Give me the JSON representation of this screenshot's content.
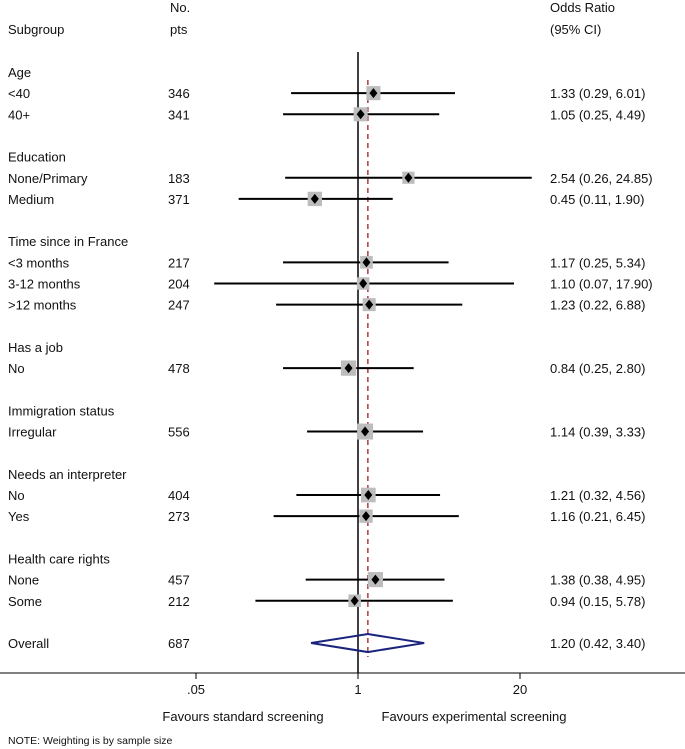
{
  "header": {
    "subgroup": "Subgroup",
    "npts_line1": "No.",
    "npts_line2": "pts",
    "or_line1": "Odds Ratio",
    "or_line2": "(95% CI)"
  },
  "footer": {
    "favours_left": "Favours standard screening",
    "favours_right": "Favours experimental screening",
    "note": "NOTE: Weighting is by sample size"
  },
  "chart_data": {
    "type": "forest",
    "x_scale": "log",
    "xlim": [
      0.019,
      70
    ],
    "x_ticks": [
      {
        "value": 0.05,
        "label": ".05"
      },
      {
        "value": 1,
        "label": "1"
      },
      {
        "value": 20,
        "label": "20"
      }
    ],
    "null_line": 1,
    "overall_or": 1.2,
    "colors": {
      "overall_diamond": "#1a237e",
      "overall_line": "#b03a3a",
      "weight_box": "#bdbdbd"
    },
    "rows": [
      {
        "kind": "group",
        "label": "Age"
      },
      {
        "kind": "study",
        "label": "<40",
        "n": "346",
        "or": 1.33,
        "lo": 0.29,
        "hi": 6.01,
        "ci": "1.33 (0.29, 6.01)"
      },
      {
        "kind": "study",
        "label": "40+",
        "n": "341",
        "or": 1.05,
        "lo": 0.25,
        "hi": 4.49,
        "ci": "1.05 (0.25, 4.49)"
      },
      {
        "kind": "gap"
      },
      {
        "kind": "group",
        "label": "Education"
      },
      {
        "kind": "study",
        "label": "None/Primary",
        "n": "183",
        "or": 2.54,
        "lo": 0.26,
        "hi": 24.85,
        "ci": "2.54 (0.26, 24.85)"
      },
      {
        "kind": "study",
        "label": "Medium",
        "n": "371",
        "or": 0.45,
        "lo": 0.11,
        "hi": 1.9,
        "ci": "0.45 (0.11, 1.90)"
      },
      {
        "kind": "gap"
      },
      {
        "kind": "group",
        "label": "Time since in France"
      },
      {
        "kind": "study",
        "label": "<3 months",
        "n": "217",
        "or": 1.17,
        "lo": 0.25,
        "hi": 5.34,
        "ci": "1.17 (0.25, 5.34)"
      },
      {
        "kind": "study",
        "label": "3-12 months",
        "n": "204",
        "or": 1.1,
        "lo": 0.07,
        "hi": 17.9,
        "ci": "1.10 (0.07, 17.90)"
      },
      {
        "kind": "study",
        "label": ">12 months",
        "n": "247",
        "or": 1.23,
        "lo": 0.22,
        "hi": 6.88,
        "ci": "1.23 (0.22, 6.88)"
      },
      {
        "kind": "gap"
      },
      {
        "kind": "group",
        "label": "Has a job"
      },
      {
        "kind": "study",
        "label": "No",
        "n": "478",
        "or": 0.84,
        "lo": 0.25,
        "hi": 2.8,
        "ci": "0.84 (0.25, 2.80)"
      },
      {
        "kind": "gap"
      },
      {
        "kind": "group",
        "label": "Immigration status"
      },
      {
        "kind": "study",
        "label": "Irregular",
        "n": "556",
        "or": 1.14,
        "lo": 0.39,
        "hi": 3.33,
        "ci": "1.14 (0.39, 3.33)"
      },
      {
        "kind": "gap"
      },
      {
        "kind": "group",
        "label": "Needs an interpreter"
      },
      {
        "kind": "study",
        "label": "No",
        "n": "404",
        "or": 1.21,
        "lo": 0.32,
        "hi": 4.56,
        "ci": "1.21 (0.32, 4.56)"
      },
      {
        "kind": "study",
        "label": "Yes",
        "n": "273",
        "or": 1.16,
        "lo": 0.21,
        "hi": 6.45,
        "ci": "1.16 (0.21, 6.45)"
      },
      {
        "kind": "gap"
      },
      {
        "kind": "group",
        "label": "Health care rights"
      },
      {
        "kind": "study",
        "label": "None",
        "n": "457",
        "or": 1.38,
        "lo": 0.38,
        "hi": 4.95,
        "ci": "1.38 (0.38, 4.95)"
      },
      {
        "kind": "study",
        "label": "Some",
        "n": "212",
        "or": 0.94,
        "lo": 0.15,
        "hi": 5.78,
        "ci": "0.94 (0.15, 5.78)"
      },
      {
        "kind": "gap"
      },
      {
        "kind": "overall",
        "label": "Overall",
        "n": "687",
        "or": 1.2,
        "lo": 0.42,
        "hi": 3.4,
        "ci": "1.20 (0.42, 3.40)"
      }
    ]
  }
}
